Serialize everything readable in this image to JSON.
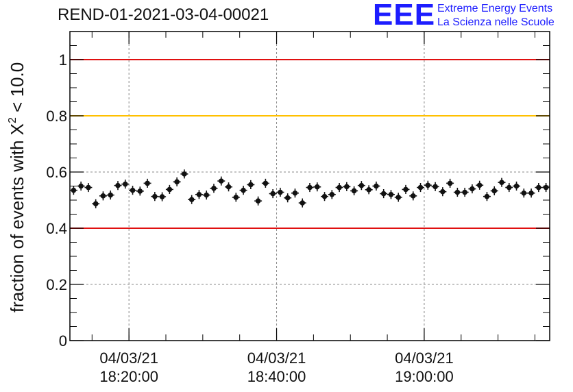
{
  "header": {
    "run_title": "REND-01-2021-03-04-00021"
  },
  "logo": {
    "mark": "EEE",
    "line1": "Extreme Energy Events",
    "line2": "La Scienza nelle Scuole",
    "color": "#1d1dff"
  },
  "chart_data": {
    "type": "scatter",
    "ylabel_prefix": "fraction of events with ",
    "ylabel_symbol": "X",
    "ylabel_sup": "2",
    "ylabel_suffix": " < 10.0",
    "ylim": [
      0,
      1.1
    ],
    "yticks": [
      0,
      0.2,
      0.4,
      0.6,
      0.8,
      1
    ],
    "ytick_labels": [
      "0",
      "0.2",
      "0.4",
      "0.6",
      "0.8",
      "1"
    ],
    "xlim": [
      "2021-03-04 18:12:00",
      "2021-03-04 19:17:00"
    ],
    "xticks": [
      {
        "date": "04/03/21",
        "time": "18:20:00"
      },
      {
        "date": "04/03/21",
        "time": "18:40:00"
      },
      {
        "date": "04/03/21",
        "time": "19:00:00"
      }
    ],
    "grid": true,
    "reference_lines": [
      {
        "y": 1.0,
        "color": "#e01010"
      },
      {
        "y": 0.8,
        "color": "#ffc000"
      },
      {
        "y": 0.4,
        "color": "#e01010"
      }
    ],
    "series": [
      {
        "marker_color": "#111111",
        "x": [
          "18:12:30",
          "18:13:30",
          "18:14:30",
          "18:15:30",
          "18:16:30",
          "18:17:30",
          "18:18:30",
          "18:19:30",
          "18:20:30",
          "18:21:30",
          "18:22:30",
          "18:23:30",
          "18:24:30",
          "18:25:30",
          "18:26:30",
          "18:27:30",
          "18:28:30",
          "18:29:30",
          "18:30:30",
          "18:31:30",
          "18:32:30",
          "18:33:30",
          "18:34:30",
          "18:35:30",
          "18:36:30",
          "18:37:30",
          "18:38:30",
          "18:39:30",
          "18:40:30",
          "18:41:30",
          "18:42:30",
          "18:43:30",
          "18:44:30",
          "18:45:30",
          "18:46:30",
          "18:47:30",
          "18:48:30",
          "18:49:30",
          "18:50:30",
          "18:51:30",
          "18:52:30",
          "18:53:30",
          "18:54:30",
          "18:55:30",
          "18:56:30",
          "18:57:30",
          "18:58:30",
          "18:59:30",
          "19:00:30",
          "19:01:30",
          "19:02:30",
          "19:03:30",
          "19:04:30",
          "19:05:30",
          "19:06:30",
          "19:07:30",
          "19:08:30",
          "19:09:30",
          "19:10:30",
          "19:11:30",
          "19:12:30",
          "19:13:30",
          "19:14:30",
          "19:15:30",
          "19:16:30"
        ],
        "y": [
          0.535,
          0.55,
          0.545,
          0.487,
          0.515,
          0.518,
          0.552,
          0.557,
          0.535,
          0.532,
          0.56,
          0.513,
          0.512,
          0.538,
          0.565,
          0.593,
          0.502,
          0.52,
          0.518,
          0.542,
          0.568,
          0.547,
          0.51,
          0.535,
          0.555,
          0.497,
          0.56,
          0.523,
          0.528,
          0.508,
          0.525,
          0.49,
          0.545,
          0.547,
          0.513,
          0.52,
          0.545,
          0.548,
          0.533,
          0.552,
          0.537,
          0.55,
          0.523,
          0.52,
          0.51,
          0.538,
          0.515,
          0.545,
          0.553,
          0.548,
          0.53,
          0.56,
          0.528,
          0.528,
          0.54,
          0.553,
          0.513,
          0.533,
          0.563,
          0.545,
          0.55,
          0.525,
          0.525,
          0.545,
          0.545
        ],
        "yerr": 0.016
      }
    ]
  }
}
